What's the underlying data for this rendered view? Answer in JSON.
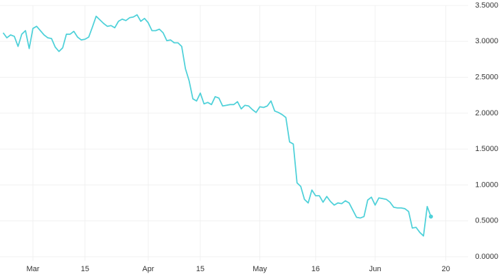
{
  "chart_data": {
    "type": "line",
    "categories": [
      null,
      null,
      null,
      null,
      null,
      null,
      null,
      null,
      "Mar",
      null,
      null,
      null,
      null,
      null,
      null,
      null,
      null,
      null,
      null,
      null,
      null,
      null,
      "15",
      null,
      null,
      null,
      null,
      null,
      null,
      null,
      null,
      null,
      null,
      null,
      null,
      null,
      null,
      null,
      null,
      "Apr",
      null,
      null,
      null,
      null,
      null,
      null,
      null,
      null,
      null,
      null,
      null,
      null,
      null,
      "15",
      null,
      null,
      null,
      null,
      null,
      null,
      null,
      null,
      null,
      null,
      null,
      null,
      null,
      null,
      null,
      "May",
      null,
      null,
      null,
      null,
      null,
      null,
      null,
      null,
      null,
      null,
      null,
      null,
      null,
      null,
      "16",
      null,
      null,
      null,
      null,
      null,
      null,
      null,
      null,
      null,
      null,
      null,
      null,
      null,
      null,
      null,
      "Jun",
      null,
      null,
      null,
      null,
      null,
      null,
      null,
      null,
      null,
      null,
      null,
      null,
      null,
      null,
      null,
      null,
      null,
      null,
      "20",
      null,
      null,
      null,
      null,
      null
    ],
    "values": [
      3.12,
      3.05,
      3.09,
      3.07,
      2.93,
      3.1,
      3.15,
      2.9,
      3.18,
      3.21,
      3.15,
      3.09,
      3.05,
      3.04,
      2.92,
      2.86,
      2.91,
      3.1,
      3.1,
      3.14,
      3.06,
      3.02,
      3.03,
      3.06,
      3.2,
      3.35,
      3.3,
      3.25,
      3.21,
      3.22,
      3.19,
      3.28,
      3.31,
      3.29,
      3.33,
      3.34,
      3.37,
      3.28,
      3.32,
      3.26,
      3.15,
      3.15,
      3.17,
      3.12,
      3.01,
      3.02,
      2.98,
      2.98,
      2.93,
      2.62,
      2.45,
      2.2,
      2.17,
      2.28,
      2.13,
      2.15,
      2.12,
      2.23,
      2.21,
      2.1,
      2.11,
      2.12,
      2.12,
      2.16,
      2.06,
      2.11,
      2.1,
      2.05,
      2.01,
      2.09,
      2.08,
      2.1,
      2.17,
      2.03,
      2.01,
      1.98,
      1.94,
      1.6,
      1.57,
      1.03,
      0.98,
      0.8,
      0.75,
      0.93,
      0.85,
      0.85,
      0.76,
      0.84,
      0.77,
      0.72,
      0.75,
      0.74,
      0.78,
      0.75,
      0.65,
      0.55,
      0.54,
      0.56,
      0.79,
      0.83,
      0.72,
      0.82,
      0.81,
      0.8,
      0.76,
      0.69,
      0.68,
      0.68,
      0.67,
      0.63,
      0.4,
      0.41,
      0.34,
      0.29,
      0.7,
      0.56,
      null,
      null,
      null,
      null,
      null,
      null,
      null,
      null,
      null
    ],
    "color": "#4fd1d9",
    "ylim": [
      0,
      3.5
    ],
    "yticks": [
      {
        "value": 0,
        "label": "0.0000"
      },
      {
        "value": 0.5,
        "label": "0.5000"
      },
      {
        "value": 1,
        "label": "1.0000"
      },
      {
        "value": 1.5,
        "label": "1.5000"
      },
      {
        "value": 2,
        "label": "2.0000"
      },
      {
        "value": 2.5,
        "label": "2.5000"
      },
      {
        "value": 3,
        "label": "3.0000"
      },
      {
        "value": 3.5,
        "label": "3.5000"
      }
    ],
    "grid": true
  }
}
